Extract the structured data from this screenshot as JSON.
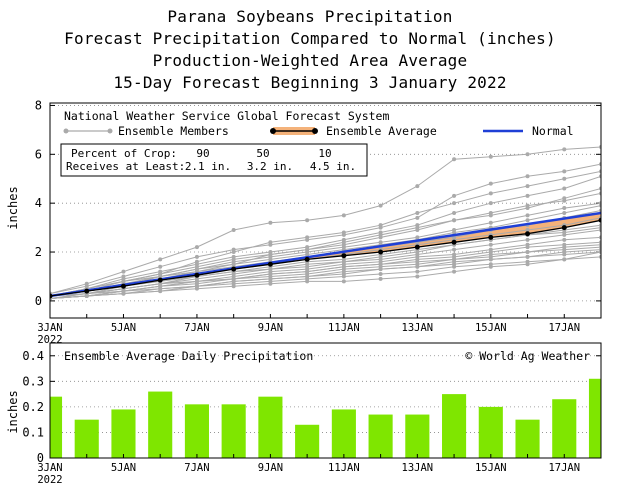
{
  "titles": {
    "line1": "Parana Soybeans Precipitation",
    "line2": "Forecast Precipitation Compared to Normal (inches)",
    "line3": "Production-Weighted Area Average",
    "line4": "15-Day Forecast Beginning 3 January 2022"
  },
  "colors": {
    "ensemble_member": "#aaaaaa",
    "ensemble_average": "#000000",
    "band_fill": "#f4b27a",
    "normal": "#1f3fd6",
    "bar": "#7fe600",
    "grid": "#888888"
  },
  "chart_data": [
    {
      "type": "line",
      "title": "National Weather Service Global Forecast System",
      "ylabel": "inches",
      "xlim": [
        0,
        15
      ],
      "ylim": [
        -0.7,
        8.1
      ],
      "yticks": [
        0,
        2,
        4,
        6,
        8
      ],
      "x_ticks": [
        {
          "pos": 0,
          "label": "3JAN",
          "sub": "2022"
        },
        {
          "pos": 2,
          "label": "5JAN"
        },
        {
          "pos": 4,
          "label": "7JAN"
        },
        {
          "pos": 6,
          "label": "9JAN"
        },
        {
          "pos": 8,
          "label": "11JAN"
        },
        {
          "pos": 10,
          "label": "13JAN"
        },
        {
          "pos": 12,
          "label": "15JAN"
        },
        {
          "pos": 14,
          "label": "17JAN"
        }
      ],
      "legend": {
        "members_label": "Ensemble Members",
        "average_label": "Ensemble Average",
        "normal_label": "Normal"
      },
      "percent_table": {
        "row1_label": "Percent of Crop:",
        "row1_values": [
          "90",
          "50",
          "10"
        ],
        "row2_label": "Receives at Least:",
        "row2_values": [
          "2.1 in.",
          "3.2 in.",
          "4.5 in."
        ]
      },
      "grid": "dotted horizontal",
      "series": [
        {
          "role": "normal",
          "x": [
            0,
            15
          ],
          "y": [
            0.2,
            3.6
          ]
        },
        {
          "role": "ensemble_average",
          "x": [
            0,
            1,
            2,
            3,
            4,
            5,
            6,
            7,
            8,
            9,
            10,
            11,
            12,
            13,
            14,
            15
          ],
          "y": [
            0.2,
            0.4,
            0.6,
            0.85,
            1.05,
            1.3,
            1.5,
            1.7,
            1.85,
            2.0,
            2.2,
            2.4,
            2.6,
            2.75,
            3.0,
            3.3
          ]
        },
        {
          "role": "ensemble_member",
          "x": [
            0,
            1,
            2,
            3,
            4,
            5,
            6,
            7,
            8,
            9,
            10,
            11,
            12,
            13,
            14,
            15
          ],
          "y": [
            0.3,
            0.7,
            1.2,
            1.7,
            2.2,
            2.9,
            3.2,
            3.3,
            3.5,
            3.9,
            4.7,
            5.8,
            5.9,
            6.0,
            6.2,
            6.3
          ]
        },
        {
          "role": "ensemble_member",
          "x": [
            0,
            1,
            2,
            3,
            4,
            5,
            6,
            7,
            8,
            9,
            10,
            11,
            12,
            13,
            14,
            15
          ],
          "y": [
            0.3,
            0.6,
            1.0,
            1.4,
            1.8,
            2.1,
            2.3,
            2.5,
            2.7,
            3.0,
            3.4,
            4.3,
            4.8,
            5.1,
            5.3,
            5.6
          ]
        },
        {
          "role": "ensemble_member",
          "x": [
            0,
            1,
            2,
            3,
            4,
            5,
            6,
            7,
            8,
            9,
            10,
            11,
            12,
            13,
            14,
            15
          ],
          "y": [
            0.2,
            0.5,
            0.9,
            1.2,
            1.5,
            1.8,
            2.0,
            2.2,
            2.5,
            2.8,
            3.1,
            3.6,
            4.0,
            4.3,
            4.6,
            5.1
          ]
        },
        {
          "role": "ensemble_member",
          "x": [
            0,
            1,
            2,
            3,
            4,
            5,
            6,
            7,
            8,
            9,
            10,
            11,
            12,
            13,
            14,
            15
          ],
          "y": [
            0.2,
            0.5,
            0.8,
            1.1,
            1.4,
            1.7,
            1.9,
            2.1,
            2.3,
            2.6,
            2.9,
            3.3,
            3.6,
            3.9,
            4.1,
            4.4
          ]
        },
        {
          "role": "ensemble_member",
          "x": [
            0,
            1,
            2,
            3,
            4,
            5,
            6,
            7,
            8,
            9,
            10,
            11,
            12,
            13,
            14,
            15
          ],
          "y": [
            0.2,
            0.4,
            0.7,
            1.0,
            1.3,
            1.6,
            1.8,
            2.0,
            2.2,
            2.4,
            2.6,
            2.9,
            3.2,
            3.5,
            3.8,
            4.0
          ]
        },
        {
          "role": "ensemble_member",
          "x": [
            0,
            1,
            2,
            3,
            4,
            5,
            6,
            7,
            8,
            9,
            10,
            11,
            12,
            13,
            14,
            15
          ],
          "y": [
            0.2,
            0.4,
            0.7,
            0.9,
            1.2,
            1.4,
            1.6,
            1.8,
            2.0,
            2.2,
            2.4,
            2.6,
            2.9,
            3.1,
            3.4,
            3.7
          ]
        },
        {
          "role": "ensemble_member",
          "x": [
            0,
            1,
            2,
            3,
            4,
            5,
            6,
            7,
            8,
            9,
            10,
            11,
            12,
            13,
            14,
            15
          ],
          "y": [
            0.2,
            0.4,
            0.6,
            0.9,
            1.1,
            1.3,
            1.5,
            1.7,
            1.9,
            2.1,
            2.3,
            2.5,
            2.7,
            2.9,
            3.1,
            3.4
          ]
        },
        {
          "role": "ensemble_member",
          "x": [
            0,
            1,
            2,
            3,
            4,
            5,
            6,
            7,
            8,
            9,
            10,
            11,
            12,
            13,
            14,
            15
          ],
          "y": [
            0.2,
            0.3,
            0.6,
            0.8,
            1.0,
            1.2,
            1.4,
            1.6,
            1.7,
            1.9,
            2.1,
            2.3,
            2.5,
            2.7,
            2.9,
            3.1
          ]
        },
        {
          "role": "ensemble_member",
          "x": [
            0,
            1,
            2,
            3,
            4,
            5,
            6,
            7,
            8,
            9,
            10,
            11,
            12,
            13,
            14,
            15
          ],
          "y": [
            0.2,
            0.3,
            0.5,
            0.7,
            0.9,
            1.1,
            1.3,
            1.4,
            1.6,
            1.7,
            1.9,
            2.1,
            2.3,
            2.5,
            2.7,
            2.9
          ]
        },
        {
          "role": "ensemble_member",
          "x": [
            0,
            1,
            2,
            3,
            4,
            5,
            6,
            7,
            8,
            9,
            10,
            11,
            12,
            13,
            14,
            15
          ],
          "y": [
            0.2,
            0.3,
            0.5,
            0.7,
            0.8,
            1.0,
            1.2,
            1.3,
            1.5,
            1.6,
            1.8,
            1.9,
            2.1,
            2.3,
            2.5,
            2.6
          ]
        },
        {
          "role": "ensemble_member",
          "x": [
            0,
            1,
            2,
            3,
            4,
            5,
            6,
            7,
            8,
            9,
            10,
            11,
            12,
            13,
            14,
            15
          ],
          "y": [
            0.1,
            0.3,
            0.4,
            0.6,
            0.8,
            0.9,
            1.1,
            1.2,
            1.4,
            1.5,
            1.7,
            1.8,
            2.0,
            2.2,
            2.3,
            2.4
          ]
        },
        {
          "role": "ensemble_member",
          "x": [
            0,
            1,
            2,
            3,
            4,
            5,
            6,
            7,
            8,
            9,
            10,
            11,
            12,
            13,
            14,
            15
          ],
          "y": [
            0.1,
            0.2,
            0.4,
            0.6,
            0.7,
            0.9,
            1.0,
            1.1,
            1.3,
            1.4,
            1.5,
            1.7,
            1.8,
            2.0,
            2.1,
            2.2
          ]
        },
        {
          "role": "ensemble_member",
          "x": [
            0,
            1,
            2,
            3,
            4,
            5,
            6,
            7,
            8,
            9,
            10,
            11,
            12,
            13,
            14,
            15
          ],
          "y": [
            0.1,
            0.2,
            0.4,
            0.5,
            0.6,
            0.8,
            0.9,
            1.0,
            1.1,
            1.3,
            1.4,
            1.5,
            1.7,
            1.8,
            1.9,
            2.0
          ]
        },
        {
          "role": "ensemble_member",
          "x": [
            0,
            1,
            2,
            3,
            4,
            5,
            6,
            7,
            8,
            9,
            10,
            11,
            12,
            13,
            14,
            15
          ],
          "y": [
            0.1,
            0.2,
            0.3,
            0.4,
            0.6,
            0.7,
            0.8,
            0.9,
            1.0,
            1.1,
            1.2,
            1.4,
            1.5,
            1.6,
            1.7,
            1.8
          ]
        },
        {
          "role": "ensemble_member",
          "x": [
            0,
            1,
            2,
            3,
            4,
            5,
            6,
            7,
            8,
            9,
            10,
            11,
            12,
            13,
            14,
            15
          ],
          "y": [
            0.1,
            0.2,
            0.3,
            0.4,
            0.5,
            0.6,
            0.7,
            0.8,
            0.8,
            0.9,
            1.0,
            1.2,
            1.4,
            1.5,
            1.7,
            2.0
          ]
        },
        {
          "role": "ensemble_member",
          "x": [
            0,
            1,
            2,
            3,
            4,
            5,
            6,
            7,
            8,
            9,
            10,
            11,
            12,
            13,
            14,
            15
          ],
          "y": [
            0.2,
            0.5,
            0.8,
            1.1,
            1.6,
            2.0,
            2.4,
            2.6,
            2.8,
            3.1,
            3.6,
            4.0,
            4.4,
            4.7,
            5.0,
            5.3
          ]
        },
        {
          "role": "ensemble_member",
          "x": [
            0,
            1,
            2,
            3,
            4,
            5,
            6,
            7,
            8,
            9,
            10,
            11,
            12,
            13,
            14,
            15
          ],
          "y": [
            0.2,
            0.4,
            0.8,
            1.0,
            1.3,
            1.5,
            1.9,
            2.1,
            2.4,
            2.7,
            3.0,
            3.3,
            3.5,
            3.8,
            4.2,
            4.6
          ]
        },
        {
          "role": "ensemble_member",
          "x": [
            0,
            1,
            2,
            3,
            4,
            5,
            6,
            7,
            8,
            9,
            10,
            11,
            12,
            13,
            14,
            15
          ],
          "y": [
            0.2,
            0.4,
            0.6,
            1.0,
            1.2,
            1.5,
            1.7,
            1.9,
            2.1,
            2.3,
            2.5,
            2.8,
            3.0,
            3.3,
            3.6,
            3.9
          ]
        },
        {
          "role": "ensemble_member",
          "x": [
            0,
            1,
            2,
            3,
            4,
            5,
            6,
            7,
            8,
            9,
            10,
            11,
            12,
            13,
            14,
            15
          ],
          "y": [
            0.1,
            0.3,
            0.5,
            0.7,
            1.0,
            1.2,
            1.3,
            1.5,
            1.6,
            1.8,
            2.0,
            2.3,
            2.5,
            2.7,
            2.8,
            3.0
          ]
        },
        {
          "role": "ensemble_member",
          "x": [
            0,
            1,
            2,
            3,
            4,
            5,
            6,
            7,
            8,
            9,
            10,
            11,
            12,
            13,
            14,
            15
          ],
          "y": [
            0.1,
            0.2,
            0.4,
            0.6,
            0.8,
            0.9,
            1.1,
            1.2,
            1.4,
            1.5,
            1.6,
            1.7,
            1.9,
            2.0,
            2.2,
            2.3
          ]
        },
        {
          "role": "ensemble_member",
          "x": [
            0,
            1,
            2,
            3,
            4,
            5,
            6,
            7,
            8,
            9,
            10,
            11,
            12,
            13,
            14,
            15
          ],
          "y": [
            0.1,
            0.2,
            0.3,
            0.5,
            0.6,
            0.8,
            0.9,
            1.0,
            1.2,
            1.3,
            1.4,
            1.6,
            1.7,
            1.8,
            2.0,
            2.1
          ]
        }
      ]
    },
    {
      "type": "bar",
      "title": "Ensemble Average Daily Precipitation",
      "annotation": "© World Ag Weather",
      "ylabel": "inches",
      "ylim": [
        0,
        0.45
      ],
      "yticks": [
        0,
        0.1,
        0.2,
        0.3,
        0.4
      ],
      "ytick_labels": [
        "0",
        "0.1",
        "0.2",
        "0.3",
        "0.4"
      ],
      "grid": "dotted horizontal",
      "x": [
        0,
        1,
        2,
        3,
        4,
        5,
        6,
        7,
        8,
        9,
        10,
        11,
        12,
        13,
        14,
        15
      ],
      "values": [
        0.24,
        0.15,
        0.19,
        0.26,
        0.21,
        0.21,
        0.24,
        0.13,
        0.19,
        0.17,
        0.17,
        0.25,
        0.2,
        0.15,
        0.23,
        0.31
      ]
    }
  ]
}
